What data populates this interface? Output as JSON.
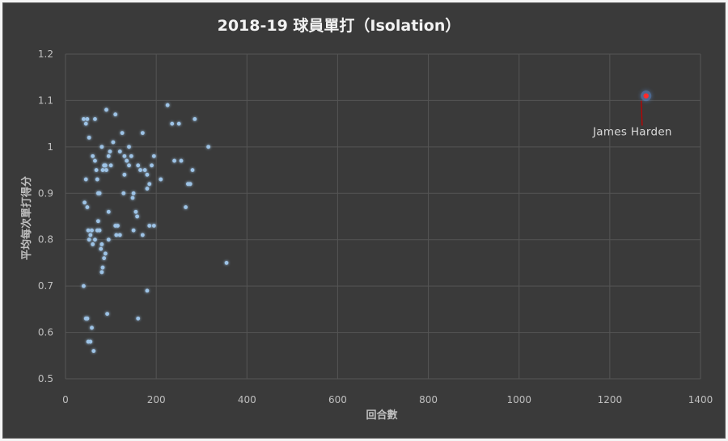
{
  "chart_data": {
    "type": "scatter",
    "title": "2018-19 球員單打（Isolation）",
    "xlabel": "回合數",
    "ylabel": "平均每次單打得分",
    "xlim": [
      0,
      1400
    ],
    "ylim": [
      0.5,
      1.2
    ],
    "xticks": [
      0,
      200,
      400,
      600,
      800,
      1000,
      1200,
      1400
    ],
    "yticks": [
      0.5,
      0.6,
      0.7,
      0.8,
      0.9,
      1,
      1.1,
      1.2
    ],
    "grid": "on",
    "legend": "none",
    "colors": {
      "points": "#9dc3e6",
      "highlight": "#ff2a2a",
      "annotation_line": "#c00000"
    },
    "series": [
      {
        "points": [
          [
            40,
            1.06
          ],
          [
            45,
            1.05
          ],
          [
            48,
            1.06
          ],
          [
            52,
            1.02
          ],
          [
            42,
            0.88
          ],
          [
            45,
            0.93
          ],
          [
            48,
            0.87
          ],
          [
            50,
            0.82
          ],
          [
            52,
            0.8
          ],
          [
            55,
            0.81
          ],
          [
            58,
            0.82
          ],
          [
            40,
            0.7
          ],
          [
            45,
            0.63
          ],
          [
            48,
            0.63
          ],
          [
            50,
            0.58
          ],
          [
            55,
            0.58
          ],
          [
            58,
            0.61
          ],
          [
            62,
            0.56
          ],
          [
            60,
            0.98
          ],
          [
            65,
            0.97
          ],
          [
            68,
            0.95
          ],
          [
            65,
            1.06
          ],
          [
            70,
            0.93
          ],
          [
            72,
            0.9
          ],
          [
            75,
            0.9
          ],
          [
            70,
            0.82
          ],
          [
            72,
            0.84
          ],
          [
            75,
            0.82
          ],
          [
            60,
            0.79
          ],
          [
            65,
            0.8
          ],
          [
            78,
            0.78
          ],
          [
            80,
            0.79
          ],
          [
            80,
            1.0
          ],
          [
            82,
            0.95
          ],
          [
            85,
            0.96
          ],
          [
            88,
            0.96
          ],
          [
            90,
            0.95
          ],
          [
            82,
            0.74
          ],
          [
            80,
            0.73
          ],
          [
            85,
            0.76
          ],
          [
            88,
            0.77
          ],
          [
            92,
            0.64
          ],
          [
            90,
            1.08
          ],
          [
            95,
            0.98
          ],
          [
            98,
            0.99
          ],
          [
            100,
            0.96
          ],
          [
            95,
            0.86
          ],
          [
            95,
            0.8
          ],
          [
            105,
            1.01
          ],
          [
            110,
            1.07
          ],
          [
            110,
            0.83
          ],
          [
            115,
            0.83
          ],
          [
            112,
            0.81
          ],
          [
            120,
            0.99
          ],
          [
            125,
            1.03
          ],
          [
            128,
            0.9
          ],
          [
            130,
            0.94
          ],
          [
            120,
            0.81
          ],
          [
            130,
            0.98
          ],
          [
            135,
            0.97
          ],
          [
            140,
            1.0
          ],
          [
            140,
            0.96
          ],
          [
            145,
            0.98
          ],
          [
            148,
            0.89
          ],
          [
            150,
            0.82
          ],
          [
            150,
            0.9
          ],
          [
            155,
            0.86
          ],
          [
            158,
            0.85
          ],
          [
            160,
            0.96
          ],
          [
            165,
            0.95
          ],
          [
            170,
            1.03
          ],
          [
            170,
            0.81
          ],
          [
            175,
            0.95
          ],
          [
            180,
            0.94
          ],
          [
            180,
            0.91
          ],
          [
            185,
            0.92
          ],
          [
            185,
            0.83
          ],
          [
            190,
            0.96
          ],
          [
            195,
            0.98
          ],
          [
            195,
            0.83
          ],
          [
            160,
            0.63
          ],
          [
            180,
            0.69
          ],
          [
            210,
            0.93
          ],
          [
            225,
            1.09
          ],
          [
            235,
            1.05
          ],
          [
            240,
            0.97
          ],
          [
            250,
            1.05
          ],
          [
            255,
            0.97
          ],
          [
            265,
            0.87
          ],
          [
            270,
            0.92
          ],
          [
            275,
            0.92
          ],
          [
            280,
            0.95
          ],
          [
            285,
            1.06
          ],
          [
            315,
            1.0
          ],
          [
            355,
            0.75
          ]
        ]
      },
      {
        "name": "James Harden",
        "points": [
          [
            1280,
            1.11
          ]
        ]
      }
    ],
    "annotations": [
      {
        "text": "James Harden",
        "x": 1280,
        "y": 1.11,
        "label_x": 1250,
        "label_y": 1.025
      }
    ]
  }
}
